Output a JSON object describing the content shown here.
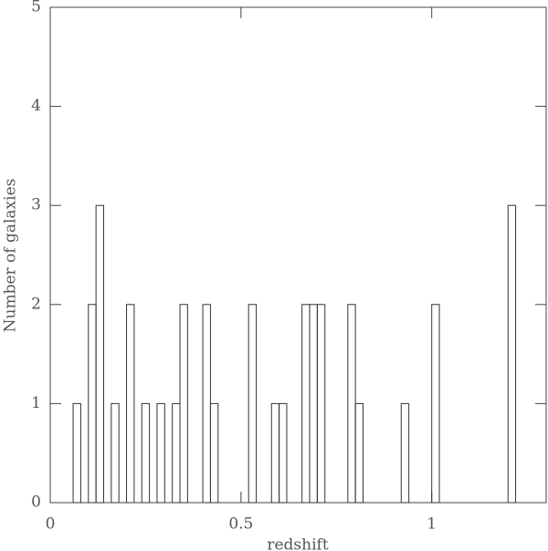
{
  "chart_data": {
    "type": "histogram",
    "xlabel": "redshift",
    "ylabel": "Number of galaxies",
    "bins": [
      0.06,
      0.08,
      0.1,
      0.12,
      0.14,
      0.16,
      0.18,
      0.2,
      0.22,
      0.24,
      0.26,
      0.28,
      0.3,
      0.32,
      0.34,
      0.36,
      0.38,
      0.4,
      0.42,
      0.44,
      0.46,
      0.48,
      0.5,
      0.52,
      0.54,
      0.56,
      0.58,
      0.6,
      0.62,
      0.64,
      0.66,
      0.68,
      0.7,
      0.72,
      0.74,
      0.76,
      0.78,
      0.8,
      0.82,
      0.84,
      0.86,
      0.88,
      0.9,
      0.92,
      0.94,
      0.96,
      0.98,
      1.0,
      1.02,
      1.04,
      1.06,
      1.08,
      1.1,
      1.12,
      1.14,
      1.16,
      1.18,
      1.2,
      1.22
    ],
    "values": [
      1,
      0,
      2,
      3,
      0,
      1,
      0,
      2,
      0,
      1,
      0,
      1,
      0,
      1,
      2,
      0,
      0,
      2,
      1,
      0,
      0,
      0,
      0,
      2,
      0,
      0,
      1,
      1,
      0,
      0,
      2,
      2,
      2,
      0,
      0,
      0,
      2,
      1,
      0,
      0,
      0,
      0,
      0,
      1,
      0,
      0,
      0,
      2,
      0,
      0,
      0,
      0,
      0,
      0,
      0,
      0,
      0,
      3
    ],
    "color": "#333333",
    "xlim": [
      0,
      1.3
    ],
    "xticks": [
      0,
      0.5,
      1
    ],
    "ylim": [
      0,
      5
    ],
    "yticks": [
      0,
      1,
      2,
      3,
      4,
      5
    ]
  }
}
